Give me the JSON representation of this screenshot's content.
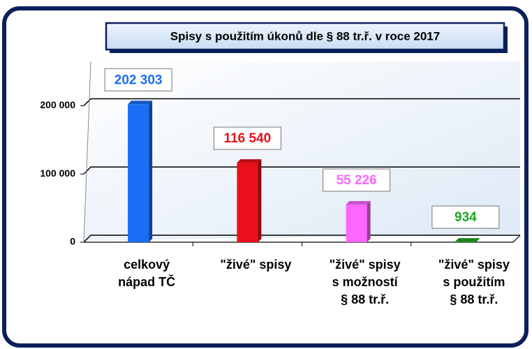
{
  "chart_data": {
    "type": "bar",
    "title": "Spisy s použitím úkonů dle § 88 tr.ř. v roce 2017",
    "categories": [
      "celkový\nnápad TČ",
      "\"živé\" spisy",
      "\"živé\" spisy\ns možností\n§ 88 tr.ř.",
      "\"živé\" spisy\ns použitím\n§ 88 tr.ř."
    ],
    "values": [
      202303,
      116540,
      55226,
      934
    ],
    "value_labels": [
      "202 303",
      "116 540",
      "55 226",
      "934"
    ],
    "colors": [
      "#1a6ef5",
      "#e8101a",
      "#ff66ff",
      "#1fa51f"
    ],
    "ylim": [
      0,
      265000
    ],
    "yticks": [
      0,
      {
        "value": 100000,
        "label": "100 000"
      },
      {
        "value": 200000,
        "label": "200 000"
      }
    ],
    "grid": true
  }
}
